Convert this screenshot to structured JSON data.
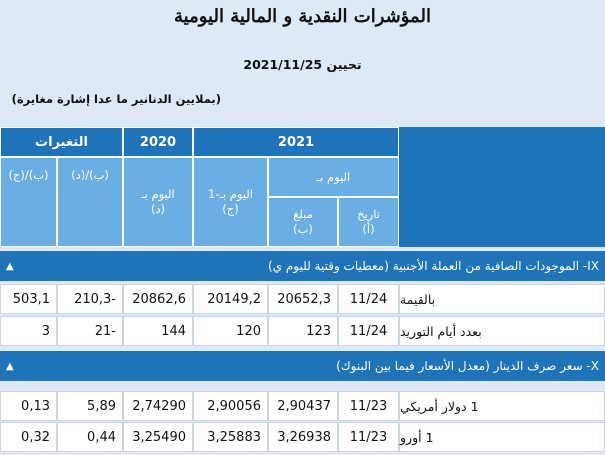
{
  "page": {
    "title": "المؤشرات النقدية و المالية اليومية",
    "update_line": "تحيين   2021/11/25",
    "note": "(بملايين الدنانير ما عدا إشارة مغايرة)"
  },
  "header": {
    "col_2021": "2021",
    "col_2020": "2020",
    "col_changes": "التغيرات",
    "day_label": "اليوم بـ",
    "date_a": "تاريخ",
    "date_a_code": "(أ)",
    "value_b": "مبلغ",
    "value_b_code": "(ب)",
    "day_minus1": "اليوم بـ-1",
    "day_minus1_code": "(ج)",
    "day_2020": "اليوم بـ",
    "day_2020_code": "(د)",
    "ratio_bd": "(ب)/(د)",
    "ratio_bc": "(ب)/(ج)"
  },
  "sections": [
    {
      "title": "IX- الموجودات الصافية من العملة الأجنبية (معطيات وقتية لليوم ي)",
      "rows": [
        {
          "label": "بالقيمة",
          "date": "11/24",
          "b": "20652,3",
          "c": "20149,2",
          "d": "20862,6",
          "bd": "210,3-",
          "bc": "503,1"
        },
        {
          "label": "بعدد أيام التوريد",
          "date": "11/24",
          "b": "123",
          "c": "120",
          "d": "144",
          "bd": "21-",
          "bc": "3"
        }
      ]
    },
    {
      "title": "X- سعر صرف الدينار (معدل الأسعار فيما بين البنوك)",
      "rows": [
        {
          "label": "1 دولار أمريكي",
          "date": "11/23",
          "b": "2,90437",
          "c": "2,90056",
          "d": "2,74290",
          "bd": "5,89",
          "bc": "0,13"
        },
        {
          "label": "1 أورو",
          "date": "11/23",
          "b": "3,26938",
          "c": "3,25883",
          "d": "3,25490",
          "bd": "0,44",
          "bc": "0,32"
        }
      ]
    }
  ],
  "colors": {
    "header_dark": "#1f73b8",
    "header_light": "#6aaee4",
    "page_bg": "#dde9f4"
  }
}
